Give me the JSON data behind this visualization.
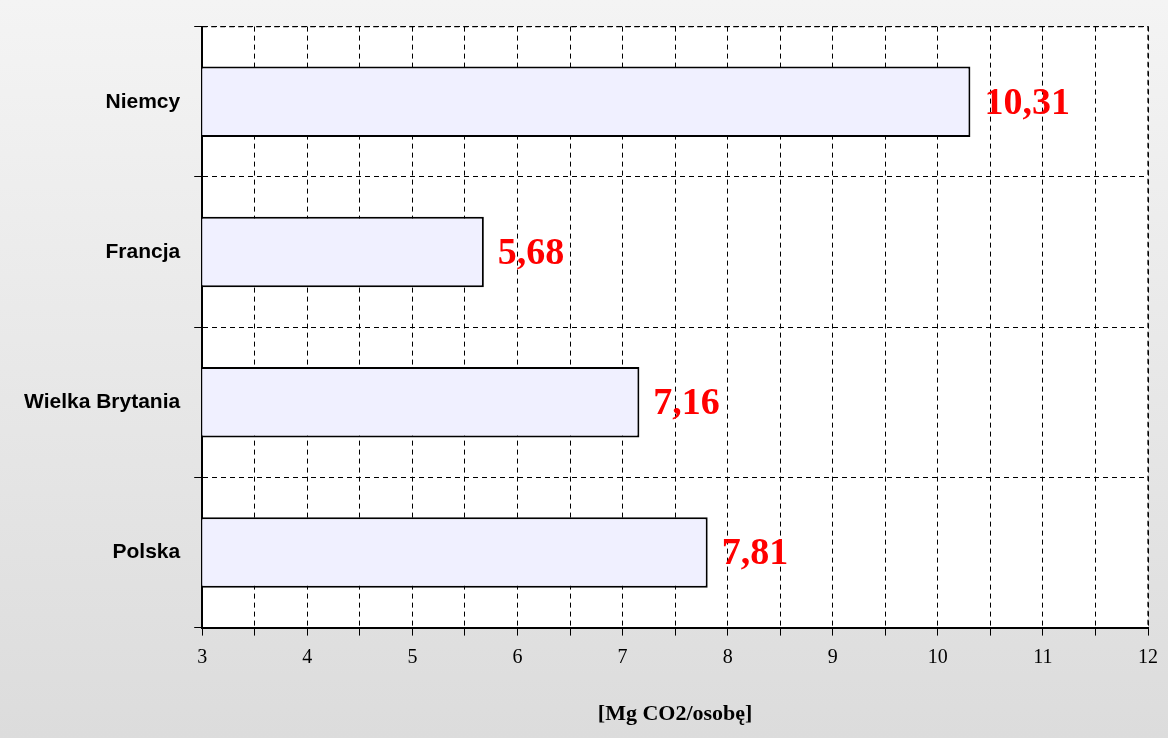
{
  "chart_data": {
    "type": "bar",
    "orientation": "horizontal",
    "xlabel": "[Mg CO2/osobę]",
    "categories": [
      "Niemcy",
      "Francja",
      "Wielka Brytania",
      "Polska"
    ],
    "values": [
      10.31,
      5.68,
      7.16,
      7.81
    ],
    "value_labels": [
      "10,31",
      "5,68",
      "7,16",
      "7,81"
    ],
    "color": "#f0f0ff",
    "xlim": [
      3,
      12
    ],
    "xticks": [
      3,
      {
        "value": 3.5,
        "label": null
      },
      4,
      {
        "value": 4.5,
        "label": null
      },
      5,
      {
        "value": 5.5,
        "label": null
      },
      6,
      {
        "value": 6.5,
        "label": null
      },
      7,
      {
        "value": 7.5,
        "label": null
      },
      8,
      {
        "value": 8.5,
        "label": null
      },
      9,
      {
        "value": 9.5,
        "label": null
      },
      10,
      {
        "value": 10.5,
        "label": null
      },
      11,
      {
        "value": 11.5,
        "label": null
      },
      12
    ],
    "grid": true
  }
}
